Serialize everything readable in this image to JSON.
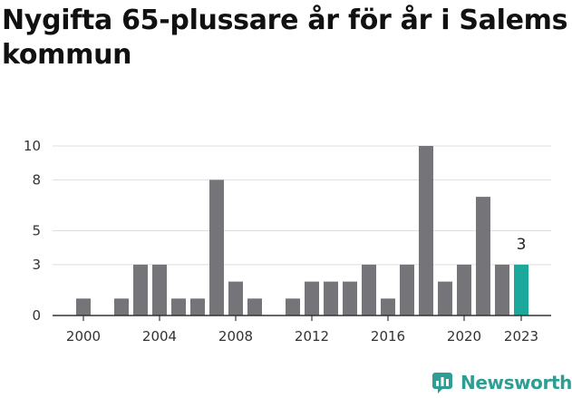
{
  "title": "Nygifta 65-plussare år för år i Salems kommun",
  "brand": {
    "name": "Newsworthy",
    "icon": "newsworthy-logo-icon"
  },
  "colors": {
    "bar": "#747479",
    "highlight": "#1aa99b",
    "grid": "#dddddd",
    "axis": "#333333"
  },
  "chart_data": {
    "type": "bar",
    "categories": [
      2000,
      2001,
      2002,
      2003,
      2004,
      2005,
      2006,
      2007,
      2008,
      2009,
      2010,
      2011,
      2012,
      2013,
      2014,
      2015,
      2016,
      2017,
      2018,
      2019,
      2020,
      2021,
      2022,
      2023
    ],
    "values": [
      1,
      0,
      1,
      3,
      3,
      1,
      1,
      8,
      2,
      1,
      0,
      1,
      2,
      2,
      2,
      3,
      1,
      3,
      10,
      2,
      3,
      7,
      3,
      3
    ],
    "highlight_category": 2023,
    "data_labels": [
      {
        "category": 2023,
        "text": "3"
      }
    ],
    "x_ticks": [
      "2000",
      "2004",
      "2008",
      "2012",
      "2016",
      "2020",
      "2023"
    ],
    "y_ticks": [
      "0",
      "3",
      "5",
      "8",
      "10"
    ],
    "ylim": [
      0,
      10
    ],
    "grid": true,
    "title": "Nygifta 65-plussare år för år i Salems kommun",
    "xlabel": "",
    "ylabel": ""
  }
}
